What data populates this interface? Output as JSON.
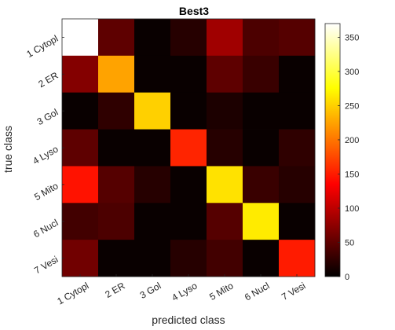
{
  "chart_data": {
    "type": "heatmap",
    "title": "Best3",
    "xlabel": "predicted class",
    "ylabel": "true class",
    "x_categories": [
      "1 Cytopl",
      "2 ER",
      "3 Gol",
      "4 Lyso",
      "5 Mito",
      "6 Nucl",
      "7 Vesi"
    ],
    "y_categories": [
      "1 Cytopl",
      "2 ER",
      "3 Gol",
      "4 Lyso",
      "5 Mito",
      "6 Nucl",
      "7 Vesi"
    ],
    "values": [
      [
        370,
        50,
        5,
        20,
        85,
        40,
        45
      ],
      [
        70,
        225,
        5,
        5,
        50,
        30,
        5
      ],
      [
        5,
        25,
        250,
        5,
        15,
        5,
        5
      ],
      [
        50,
        5,
        5,
        155,
        20,
        5,
        25
      ],
      [
        145,
        45,
        20,
        5,
        260,
        30,
        20
      ],
      [
        35,
        40,
        5,
        5,
        45,
        265,
        5
      ],
      [
        60,
        5,
        5,
        20,
        35,
        5,
        150
      ]
    ],
    "colormap": "hot",
    "colorbar_range": [
      0,
      370
    ],
    "colorbar_ticks": [
      0,
      50,
      100,
      150,
      200,
      250,
      300,
      350
    ],
    "grid": false,
    "colorbar_position": "right"
  }
}
